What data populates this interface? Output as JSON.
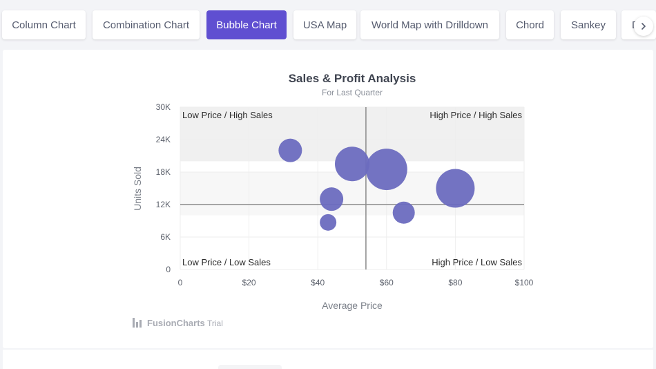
{
  "tabs": [
    {
      "label": "Column Chart",
      "active": false
    },
    {
      "label": "Combination Chart",
      "active": false
    },
    {
      "label": "Bubble Chart",
      "active": true
    },
    {
      "label": "USA Map",
      "active": false
    },
    {
      "label": "World Map with Drilldown",
      "active": false
    },
    {
      "label": "Chord",
      "active": false
    },
    {
      "label": "Sankey",
      "active": false
    },
    {
      "label": "D",
      "active": false
    }
  ],
  "colors": {
    "accent": "#5f4fd1",
    "bubble": "#6b6bbf",
    "quadrant_line": "#8a8a8a",
    "band": "#f0f0f0"
  },
  "watermark": {
    "brand": "FusionCharts",
    "suffix": "Trial"
  },
  "chart_data": {
    "type": "scatter",
    "variant": "bubble",
    "title": "Sales & Profit Analysis",
    "subtitle": "For Last Quarter",
    "xlabel": "Average Price",
    "ylabel": "Units Sold",
    "xlim": [
      0,
      100
    ],
    "ylim": [
      0,
      30000
    ],
    "x_ticks": [
      "0",
      "$20",
      "$40",
      "$60",
      "$80",
      "$100"
    ],
    "y_ticks": [
      "0",
      "6K",
      "12K",
      "18K",
      "24K",
      "30K"
    ],
    "quadrant_x": 54,
    "quadrant_y": 12000,
    "quadrant_labels": {
      "top_left": "Low Price / High Sales",
      "top_right": "High Price / High Sales",
      "bottom_left": "Low Price / Low Sales",
      "bottom_right": "High Price / Low Sales"
    },
    "bands": [
      [
        10000,
        18000
      ],
      [
        20000,
        30000
      ]
    ],
    "grid": true,
    "points": [
      {
        "x": 32,
        "y": 22000,
        "z": 17
      },
      {
        "x": 50,
        "y": 19500,
        "z": 25
      },
      {
        "x": 60,
        "y": 18500,
        "z": 30
      },
      {
        "x": 44,
        "y": 13000,
        "z": 17
      },
      {
        "x": 43,
        "y": 8700,
        "z": 12
      },
      {
        "x": 65,
        "y": 10500,
        "z": 16
      },
      {
        "x": 80,
        "y": 15000,
        "z": 28
      }
    ]
  }
}
